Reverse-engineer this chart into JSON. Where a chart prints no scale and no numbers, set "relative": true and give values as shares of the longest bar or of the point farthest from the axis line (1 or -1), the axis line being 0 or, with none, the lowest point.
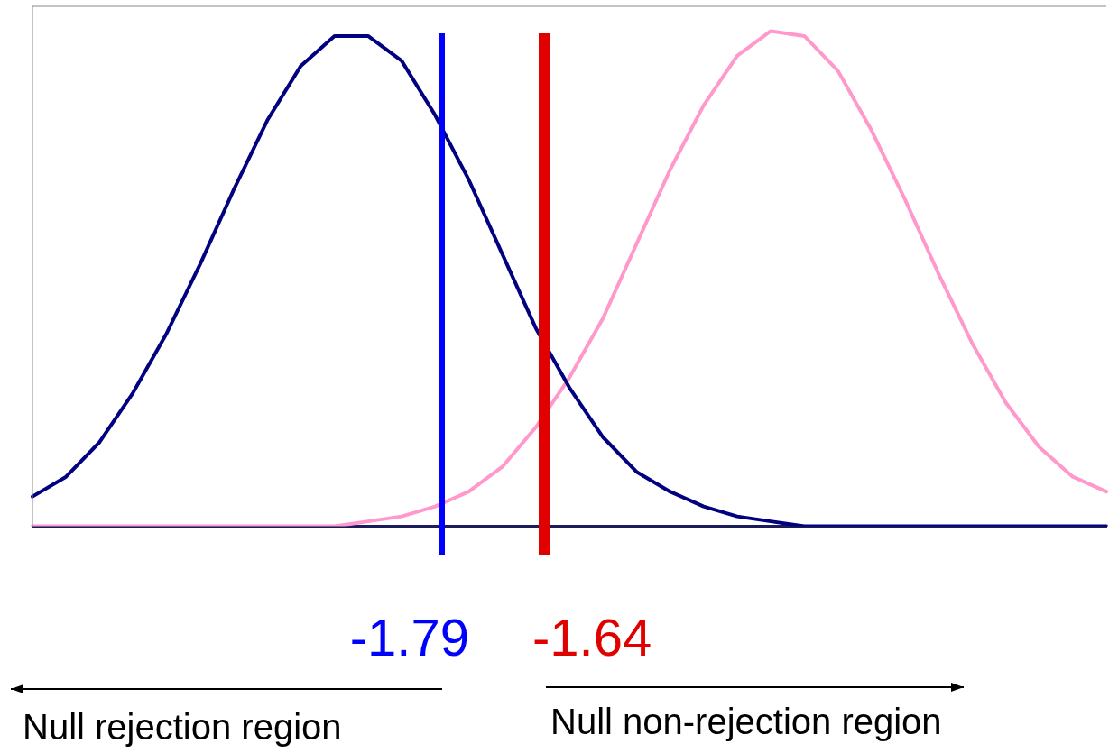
{
  "chart_data": {
    "type": "line",
    "relative": true,
    "grid": false,
    "legend": false,
    "marker": "none",
    "line_style": "solid",
    "categories": [
      null,
      null,
      null,
      null,
      null,
      null,
      null,
      null,
      null,
      null,
      null,
      null,
      null,
      null,
      null,
      null,
      null,
      null,
      null,
      null,
      null,
      null,
      null,
      null,
      null,
      null,
      null,
      null,
      null,
      null,
      null,
      null,
      null
    ],
    "series": [
      {
        "color": "#000080",
        "values": [
          0.06,
          0.1,
          0.17,
          0.27,
          0.39,
          0.53,
          0.68,
          0.82,
          0.93,
          0.99,
          0.99,
          0.94,
          0.83,
          0.7,
          0.55,
          0.4,
          0.28,
          0.18,
          0.11,
          0.07,
          0.04,
          0.02,
          0.01,
          0,
          0,
          0,
          0,
          0,
          0,
          0,
          0,
          0,
          0
        ]
      },
      {
        "color": "#ff99cc",
        "values": [
          0,
          0,
          0,
          0,
          0,
          0,
          0,
          0,
          0,
          0,
          0.01,
          0.02,
          0.04,
          0.07,
          0.12,
          0.2,
          0.3,
          0.42,
          0.57,
          0.72,
          0.85,
          0.95,
          1,
          0.99,
          0.92,
          0.8,
          0.66,
          0.51,
          0.37,
          0.25,
          0.16,
          0.1,
          0.07
        ]
      }
    ],
    "annotations": [
      "-1.79",
      "-1.64",
      "Null rejection region",
      "Null non-rejection region"
    ]
  }
}
